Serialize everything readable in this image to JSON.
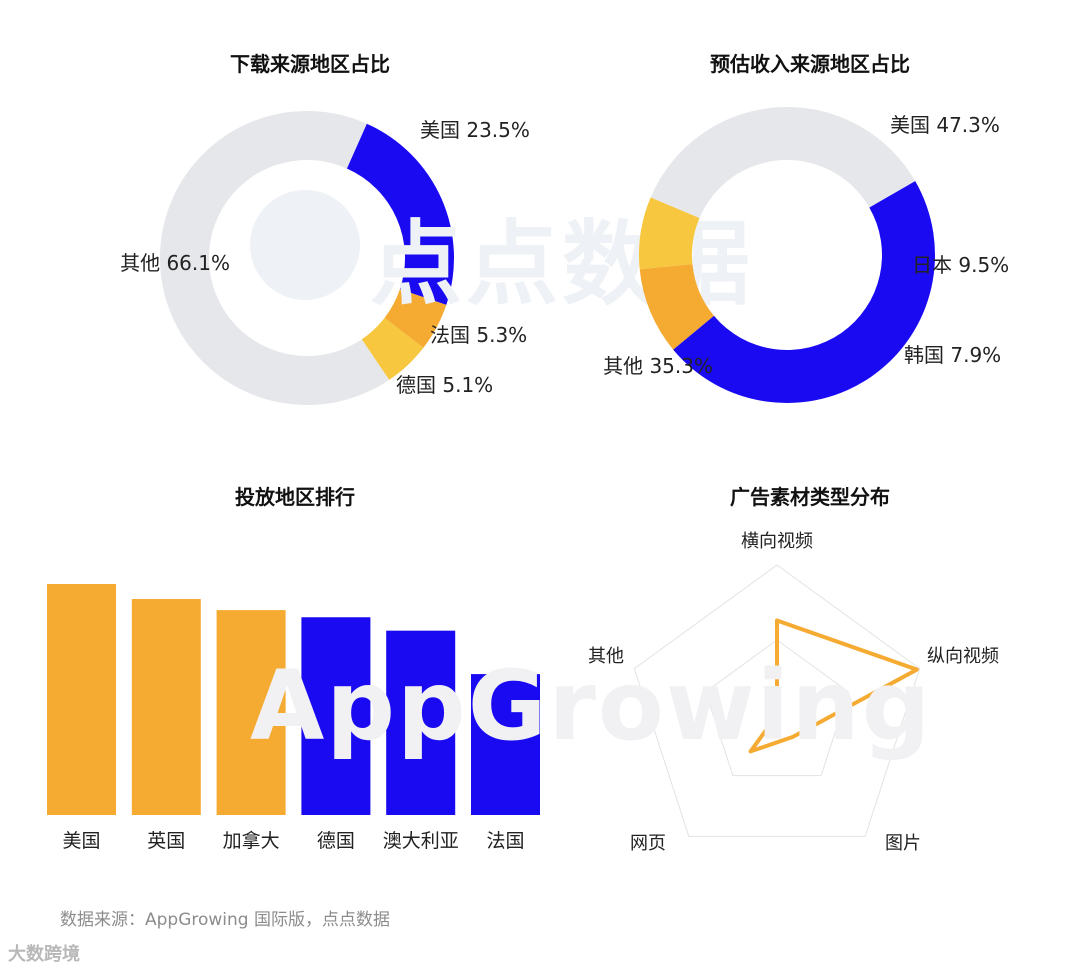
{
  "colors": {
    "blue": "#1a0af2",
    "orange": "#f5ab32",
    "yellow": "#f6c73f",
    "gray": "#e6e7eb",
    "radar_line": "#f5ab32",
    "radar_grid": "#e3e3e3"
  },
  "watermarks": {
    "top": "点点数据",
    "bottom": "AppGrowing"
  },
  "footer": {
    "source": "数据来源：AppGrowing 国际版，点点数据",
    "brand": "大数跨境"
  },
  "chart_data": [
    {
      "type": "pie",
      "title": "下载来源地区占比",
      "labels": [
        "美国",
        "法国",
        "德国",
        "其他"
      ],
      "values": [
        23.5,
        5.3,
        5.1,
        66.1
      ],
      "value_labels": [
        "23.5%",
        "5.3%",
        "5.1%",
        "66.1%"
      ],
      "colors": [
        "#1a0af2",
        "#f5ab32",
        "#f6c73f",
        "#e6e7eb"
      ],
      "donut": true,
      "legend": "none"
    },
    {
      "type": "pie",
      "title": "预估收入来源地区占比",
      "labels": [
        "美国",
        "日本",
        "韩国",
        "其他"
      ],
      "values": [
        47.3,
        9.5,
        7.9,
        35.3
      ],
      "value_labels": [
        "47.3%",
        "9.5%",
        "7.9%",
        "35.3%"
      ],
      "colors": [
        "#1a0af2",
        "#f5ab32",
        "#f6c73f",
        "#e6e7eb"
      ],
      "donut": true,
      "legend": "none"
    },
    {
      "type": "bar",
      "title": "投放地区排行",
      "categories": [
        "美国",
        "英国",
        "加拿大",
        "德国",
        "澳大利亚",
        "法国"
      ],
      "values": [
        100,
        93.5,
        88.7,
        85.6,
        79.8,
        61.0
      ],
      "colors": [
        "#f5ab32",
        "#f5ab32",
        "#f5ab32",
        "#1a0af2",
        "#1a0af2",
        "#1a0af2"
      ],
      "ylim": [
        0,
        100
      ],
      "grid": false,
      "axis_values_shown": false
    },
    {
      "type": "radar",
      "title": "广告素材类型分布",
      "axes": [
        "横向视频",
        "纵向视频",
        "图片",
        "网页",
        "其他"
      ],
      "values": [
        0.63,
        0.98,
        0.18,
        0.3,
        0.0
      ],
      "range": [
        0,
        1
      ],
      "grid_levels": 2
    }
  ]
}
